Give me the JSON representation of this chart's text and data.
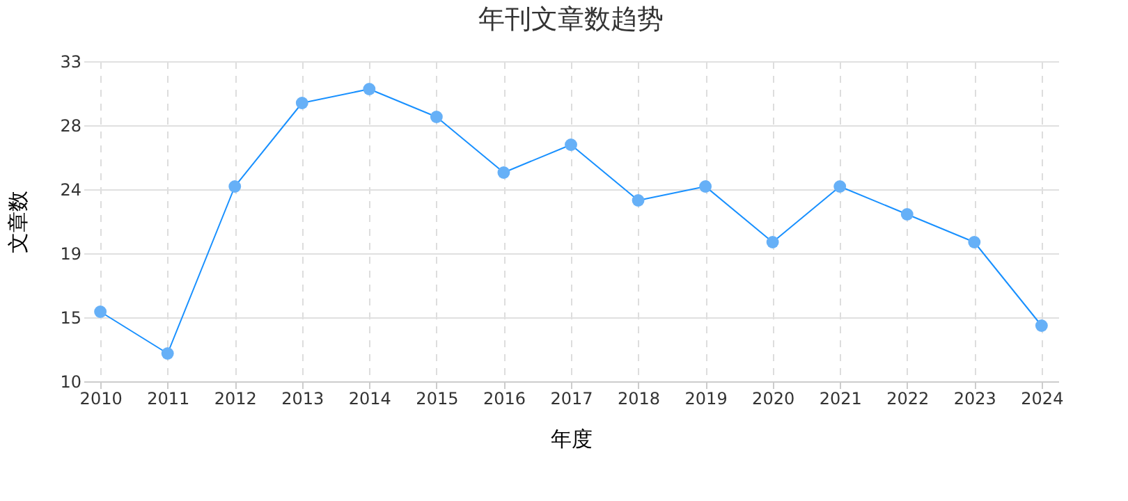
{
  "chart_data": {
    "type": "line",
    "title": "年刊文章数趋势",
    "xlabel": "年度",
    "ylabel": "文章数",
    "categories": [
      "2010",
      "2011",
      "2012",
      "2013",
      "2014",
      "2015",
      "2016",
      "2017",
      "2018",
      "2019",
      "2020",
      "2021",
      "2022",
      "2023",
      "2024"
    ],
    "series": [
      {
        "color": "#1890ff",
        "values": [
          15,
          12,
          24,
          30,
          31,
          29,
          25,
          27,
          23,
          24,
          20,
          24,
          22,
          20,
          14
        ]
      }
    ],
    "ylim": [
      10,
      33
    ],
    "yticks": [
      10,
      {
        "value": 14.6,
        "label": "15"
      },
      {
        "value": 19.2,
        "label": "19"
      },
      {
        "value": 23.8,
        "label": "24"
      },
      {
        "value": 28.4,
        "label": "28"
      },
      33
    ],
    "grid": true,
    "marker": "circle",
    "line_style": "solid"
  }
}
